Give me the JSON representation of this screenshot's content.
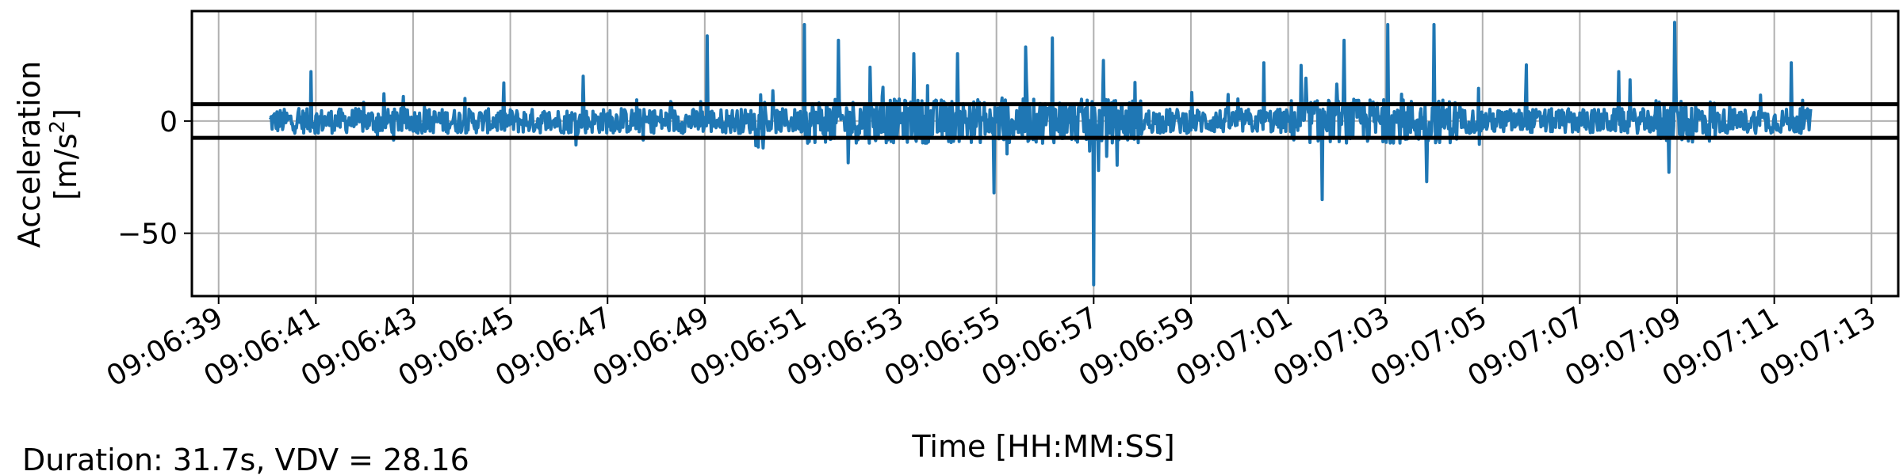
{
  "chart_data": {
    "type": "line",
    "xlabel": "Time [HH:MM:SS]",
    "ylabel_line1": "Acceleration",
    "ylabel_line2_base": "[m/s",
    "ylabel_line2_sup": "2",
    "ylabel_line2_end": "]",
    "footer_text": "Duration: 31.7s, VDV = 28.16",
    "x_tick_labels": [
      "09:06:39",
      "09:06:41",
      "09:06:43",
      "09:06:45",
      "09:06:47",
      "09:06:49",
      "09:06:51",
      "09:06:53",
      "09:06:55",
      "09:06:57",
      "09:06:59",
      "09:07:01",
      "09:07:03",
      "09:07:05",
      "09:07:07",
      "09:07:09",
      "09:07:11",
      "09:07:13"
    ],
    "x_tick_seconds": [
      0,
      2,
      4,
      6,
      8,
      10,
      12,
      14,
      16,
      18,
      20,
      22,
      24,
      26,
      28,
      30,
      32,
      34
    ],
    "xlim_seconds": [
      -0.55,
      34.55
    ],
    "y_tick_values": [
      0,
      -50
    ],
    "y_tick_labels": [
      "0",
      "−50"
    ],
    "ylim": [
      -78,
      49
    ],
    "grid": true,
    "threshold_lines": [
      7.5,
      -7.5
    ],
    "series_color": "#1f77b4",
    "signal": {
      "start_seconds": 1.05,
      "end_seconds": 32.75,
      "sample_rate_hz": 60,
      "baseline_amplitude": 5.5,
      "peaks": [
        {
          "t": 10.05,
          "v": 38
        },
        {
          "t": 12.05,
          "v": 43
        },
        {
          "t": 12.75,
          "v": 36
        },
        {
          "t": 15.95,
          "v": -32
        },
        {
          "t": 17.15,
          "v": 37
        },
        {
          "t": 18.0,
          "v": -73
        },
        {
          "t": 18.2,
          "v": 27
        },
        {
          "t": 18.1,
          "v": -22
        },
        {
          "t": 22.7,
          "v": -35
        },
        {
          "t": 23.15,
          "v": 36
        },
        {
          "t": 24.05,
          "v": 43
        },
        {
          "t": 24.85,
          "v": -27
        },
        {
          "t": 25.0,
          "v": 43
        },
        {
          "t": 29.95,
          "v": 44
        },
        {
          "t": 32.35,
          "v": 26
        },
        {
          "t": 1.9,
          "v": 22
        },
        {
          "t": 7.5,
          "v": 20
        },
        {
          "t": 11.2,
          "v": -12
        },
        {
          "t": 13.4,
          "v": 24
        },
        {
          "t": 14.3,
          "v": 30
        },
        {
          "t": 16.6,
          "v": 33
        },
        {
          "t": 21.5,
          "v": 26
        },
        {
          "t": 26.9,
          "v": 25
        },
        {
          "t": 28.8,
          "v": 22
        }
      ]
    }
  }
}
